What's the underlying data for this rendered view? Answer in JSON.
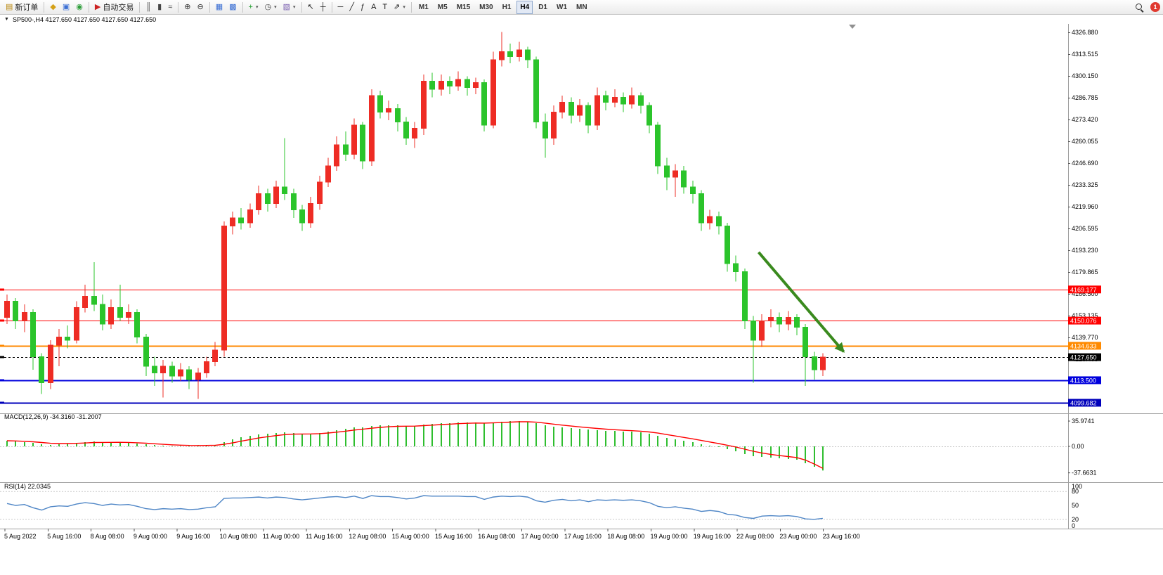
{
  "toolbar": {
    "dropdown_glyph": "▾",
    "notification_count": "1",
    "timeframes": [
      "M1",
      "M5",
      "M15",
      "M30",
      "H1",
      "H4",
      "D1",
      "W1",
      "MN"
    ],
    "active_timeframe": "H4",
    "items": [
      {
        "name": "new-order-button",
        "icon": "new-order-icon",
        "glyph": "▤",
        "color": "#b8860b",
        "label": "新订单"
      },
      {
        "type": "sep"
      },
      {
        "name": "market-watch-button",
        "icon": "market-watch-icon",
        "glyph": "◆",
        "color": "#d4a017"
      },
      {
        "name": "profiles-button",
        "icon": "profiles-icon",
        "glyph": "▣",
        "color": "#3b6fd4"
      },
      {
        "name": "news-button",
        "icon": "globe-icon",
        "glyph": "◉",
        "color": "#2e9e3a"
      },
      {
        "type": "sep"
      },
      {
        "name": "auto-trading-button",
        "icon": "auto-trading-icon",
        "glyph": "▶",
        "color": "#cc2222",
        "label": "自动交易"
      },
      {
        "type": "sep"
      },
      {
        "name": "bar-chart-button",
        "icon": "bar-chart-icon",
        "glyph": "║",
        "color": "#444"
      },
      {
        "name": "candlestick-chart-button",
        "icon": "candlestick-chart-icon",
        "glyph": "▮",
        "color": "#444"
      },
      {
        "name": "line-chart-button",
        "icon": "line-chart-icon",
        "glyph": "≈",
        "color": "#444"
      },
      {
        "type": "sep"
      },
      {
        "name": "zoom-in-button",
        "icon": "zoom-in-icon",
        "glyph": "⊕",
        "color": "#333"
      },
      {
        "name": "zoom-out-button",
        "icon": "zoom-out-icon",
        "glyph": "⊖",
        "color": "#333"
      },
      {
        "type": "sep"
      },
      {
        "name": "tile-windows-button",
        "icon": "tile-windows-icon",
        "glyph": "▦",
        "color": "#3b6fd4"
      },
      {
        "name": "cascade-windows-button",
        "icon": "cascade-windows-icon",
        "glyph": "▩",
        "color": "#3b6fd4"
      },
      {
        "type": "sep"
      },
      {
        "name": "new-chart-button",
        "icon": "plus-icon",
        "glyph": "+",
        "color": "#1f9e2c",
        "dropdown": true
      },
      {
        "name": "period-button",
        "icon": "clock-icon",
        "glyph": "◷",
        "color": "#444",
        "dropdown": true
      },
      {
        "name": "templates-button",
        "icon": "image-icon",
        "glyph": "▧",
        "color": "#7a5fb0",
        "dropdown": true
      },
      {
        "type": "sep"
      },
      {
        "name": "cursor-button",
        "icon": "cursor-icon",
        "glyph": "↖",
        "color": "#222"
      },
      {
        "name": "crosshair-button",
        "icon": "crosshair-icon",
        "glyph": "┼",
        "color": "#222"
      },
      {
        "type": "sep"
      },
      {
        "name": "horizontal-line-button",
        "icon": "horizontal-line-icon",
        "glyph": "─",
        "color": "#222"
      },
      {
        "name": "trendline-button",
        "icon": "trendline-icon",
        "glyph": "╱",
        "color": "#222"
      },
      {
        "name": "fibonacci-button",
        "icon": "fibonacci-icon",
        "glyph": "ƒ",
        "color": "#222"
      },
      {
        "name": "text-button",
        "icon": "text-icon",
        "glyph": "A",
        "color": "#222"
      },
      {
        "name": "label-button",
        "icon": "label-icon",
        "glyph": "T",
        "color": "#222"
      },
      {
        "name": "shapes-button",
        "icon": "arrow-shape-icon",
        "glyph": "⇗",
        "color": "#222",
        "dropdown": true
      },
      {
        "type": "sep"
      }
    ]
  },
  "chart": {
    "title": "SP500-,H4  4127.650 4127.650 4127.650 4127.650",
    "symbol": "SP500-",
    "period": "H4",
    "menu_glyph": "▼"
  },
  "chart_data": {
    "type": "candlestick",
    "symbol": "SP500-",
    "timeframe": "H4",
    "colors": {
      "up": "#ee2c24",
      "down": "#2bc42b",
      "macd_hist": "#2fbe2f",
      "macd_signal": "#ff0000",
      "rsi": "#4f86c6",
      "arrow": "#3a8a1e"
    },
    "price_axis": {
      "step": 13.365,
      "ticks": [
        "4326.880",
        "4313.515",
        "4300.150",
        "4286.785",
        "4273.420",
        "4260.055",
        "4246.690",
        "4233.325",
        "4219.960",
        "4206.595",
        "4193.230",
        "4179.865",
        "4166.500",
        "4153.135",
        "4139.770",
        "4126.405",
        "4113.040",
        "4099.675"
      ]
    },
    "hlines": [
      {
        "price": 4169.177,
        "label": "4169.177",
        "color": "#ff0000",
        "style": "solid",
        "width": 1
      },
      {
        "price": 4150.076,
        "label": "4150.076",
        "color": "#ff0000",
        "style": "solid",
        "width": 1
      },
      {
        "price": 4134.633,
        "label": "4134.633",
        "color": "#ff8a00",
        "style": "solid",
        "width": 2
      },
      {
        "price": 4127.65,
        "label": "4127.650",
        "color": "#000000",
        "style": "dash",
        "width": 1
      },
      {
        "price": 4113.5,
        "label": "4113.500",
        "color": "#0000dd",
        "style": "solid",
        "width": 2
      },
      {
        "price": 4099.682,
        "label": "4099.682",
        "color": "#0000bb",
        "style": "solid",
        "width": 2
      }
    ],
    "current_price": "4127.650",
    "arrow": {
      "from_index": 86.6,
      "from_price": 4192,
      "to_index": 96.4,
      "to_price": 4131,
      "color": "#3a8a1e"
    },
    "ohlc": [
      [
        4152,
        4166,
        4148,
        4162
      ],
      [
        4162,
        4164,
        4145,
        4150
      ],
      [
        4150,
        4160,
        4143,
        4155
      ],
      [
        4155,
        4157,
        4120,
        4128
      ],
      [
        4128,
        4130,
        4105,
        4112
      ],
      [
        4112,
        4138,
        4108,
        4135
      ],
      [
        4135,
        4145,
        4122,
        4140
      ],
      [
        4140,
        4147,
        4133,
        4138
      ],
      [
        4138,
        4162,
        4136,
        4158
      ],
      [
        4158,
        4172,
        4155,
        4165
      ],
      [
        4165,
        4186,
        4156,
        4160
      ],
      [
        4160,
        4166,
        4144,
        4148
      ],
      [
        4148,
        4163,
        4145,
        4158
      ],
      [
        4158,
        4172,
        4150,
        4152
      ],
      [
        4152,
        4160,
        4148,
        4155
      ],
      [
        4155,
        4157,
        4136,
        4140
      ],
      [
        4140,
        4142,
        4116,
        4122
      ],
      [
        4122,
        4128,
        4110,
        4118
      ],
      [
        4118,
        4126,
        4103,
        4122
      ],
      [
        4122,
        4125,
        4112,
        4116
      ],
      [
        4116,
        4124,
        4113,
        4120
      ],
      [
        4120,
        4122,
        4108,
        4114
      ],
      [
        4114,
        4121,
        4102,
        4118
      ],
      [
        4118,
        4128,
        4115,
        4125
      ],
      [
        4125,
        4137,
        4122,
        4132
      ],
      [
        4132,
        4211,
        4128,
        4208
      ],
      [
        4208,
        4217,
        4203,
        4213
      ],
      [
        4213,
        4219,
        4206,
        4210
      ],
      [
        4210,
        4222,
        4207,
        4218
      ],
      [
        4218,
        4233,
        4215,
        4228
      ],
      [
        4228,
        4231,
        4217,
        4222
      ],
      [
        4222,
        4236,
        4219,
        4232
      ],
      [
        4232,
        4262,
        4224,
        4228
      ],
      [
        4228,
        4231,
        4213,
        4218
      ],
      [
        4218,
        4221,
        4205,
        4210
      ],
      [
        4210,
        4226,
        4207,
        4222
      ],
      [
        4222,
        4239,
        4218,
        4235
      ],
      [
        4235,
        4250,
        4232,
        4245
      ],
      [
        4245,
        4263,
        4242,
        4258
      ],
      [
        4258,
        4266,
        4248,
        4252
      ],
      [
        4252,
        4274,
        4249,
        4270
      ],
      [
        4270,
        4272,
        4243,
        4248
      ],
      [
        4248,
        4292,
        4245,
        4288
      ],
      [
        4288,
        4291,
        4274,
        4278
      ],
      [
        4278,
        4285,
        4273,
        4280
      ],
      [
        4280,
        4283,
        4266,
        4272
      ],
      [
        4272,
        4275,
        4258,
        4262
      ],
      [
        4262,
        4272,
        4256,
        4268
      ],
      [
        4268,
        4301,
        4264,
        4297
      ],
      [
        4297,
        4302,
        4287,
        4292
      ],
      [
        4292,
        4301,
        4288,
        4297
      ],
      [
        4297,
        4300,
        4289,
        4294
      ],
      [
        4294,
        4303,
        4291,
        4298
      ],
      [
        4298,
        4300,
        4288,
        4293
      ],
      [
        4293,
        4299,
        4289,
        4296
      ],
      [
        4296,
        4298,
        4266,
        4270
      ],
      [
        4270,
        4315,
        4268,
        4310
      ],
      [
        4310,
        4327,
        4306,
        4315
      ],
      [
        4315,
        4320,
        4308,
        4312
      ],
      [
        4312,
        4321,
        4309,
        4316
      ],
      [
        4316,
        4318,
        4305,
        4310
      ],
      [
        4310,
        4312,
        4268,
        4272
      ],
      [
        4272,
        4277,
        4250,
        4262
      ],
      [
        4262,
        4282,
        4258,
        4278
      ],
      [
        4278,
        4288,
        4274,
        4284
      ],
      [
        4284,
        4287,
        4271,
        4276
      ],
      [
        4276,
        4286,
        4272,
        4282
      ],
      [
        4282,
        4284,
        4265,
        4270
      ],
      [
        4270,
        4293,
        4267,
        4288
      ],
      [
        4288,
        4291,
        4279,
        4284
      ],
      [
        4284,
        4292,
        4281,
        4287
      ],
      [
        4287,
        4290,
        4278,
        4283
      ],
      [
        4283,
        4293,
        4280,
        4288
      ],
      [
        4288,
        4290,
        4277,
        4282
      ],
      [
        4282,
        4284,
        4265,
        4270
      ],
      [
        4270,
        4272,
        4240,
        4245
      ],
      [
        4245,
        4250,
        4230,
        4238
      ],
      [
        4238,
        4246,
        4226,
        4242
      ],
      [
        4242,
        4245,
        4228,
        4232
      ],
      [
        4232,
        4236,
        4222,
        4228
      ],
      [
        4228,
        4230,
        4205,
        4210
      ],
      [
        4210,
        4218,
        4206,
        4214
      ],
      [
        4214,
        4217,
        4203,
        4208
      ],
      [
        4208,
        4210,
        4180,
        4185
      ],
      [
        4185,
        4190,
        4174,
        4180
      ],
      [
        4180,
        4182,
        4145,
        4150
      ],
      [
        4150,
        4153,
        4112,
        4138
      ],
      [
        4138,
        4154,
        4134,
        4150
      ],
      [
        4150,
        4157,
        4146,
        4152
      ],
      [
        4152,
        4155,
        4143,
        4148
      ],
      [
        4148,
        4156,
        4144,
        4152
      ],
      [
        4152,
        4154,
        4141,
        4146
      ],
      [
        4146,
        4148,
        4110,
        4128
      ],
      [
        4128,
        4131,
        4114,
        4120
      ],
      [
        4120,
        4130,
        4116,
        4127.65
      ]
    ],
    "macd": {
      "label_text": "MACD(12,26,9) -34.3160 -31.2007",
      "axis_ticks": [
        "35.9741",
        "0.00",
        "-37.6631"
      ],
      "hist": [
        8,
        7,
        6,
        5,
        3,
        2,
        3,
        4,
        5,
        6,
        7,
        6,
        6,
        6,
        5,
        4,
        3,
        2,
        1,
        0.5,
        0.5,
        0.5,
        1,
        1.5,
        2,
        6,
        10,
        13,
        15,
        17,
        18,
        19,
        20,
        19,
        18,
        18,
        19,
        21,
        23,
        25,
        27,
        27,
        29,
        30,
        30,
        30,
        29,
        29,
        31,
        32,
        33,
        33,
        34,
        34,
        34,
        33,
        34,
        35,
        36,
        36,
        35,
        33,
        30,
        28,
        27,
        26,
        25,
        24,
        23,
        22,
        22,
        21,
        21,
        20,
        18,
        15,
        12,
        10,
        8,
        6,
        3,
        1,
        -1,
        -4,
        -7,
        -11,
        -14,
        -15,
        -16,
        -17,
        -18,
        -19,
        -24,
        -29,
        -34.3
      ],
      "signal": [
        8,
        7.7,
        7.2,
        6.5,
        5.5,
        4.4,
        4,
        4,
        4.3,
        4.8,
        5.5,
        5.6,
        5.7,
        5.8,
        5.6,
        5.1,
        4.5,
        3.7,
        2.9,
        2.2,
        1.7,
        1.3,
        1.2,
        1.3,
        1.5,
        2.9,
        5,
        7.4,
        9.7,
        11.9,
        13.7,
        15.3,
        16.7,
        17.4,
        17.6,
        17.7,
        18.1,
        19,
        20.2,
        21.6,
        23.2,
        24.4,
        25.8,
        27,
        27.9,
        28.5,
        28.7,
        28.8,
        29.5,
        30.2,
        31,
        31.6,
        32.3,
        32.8,
        33.2,
        33.1,
        33.4,
        33.9,
        34.5,
        35,
        35,
        34.4,
        33.1,
        31.6,
        30.2,
        28.9,
        27.7,
        26.6,
        25.5,
        24.5,
        23.7,
        22.9,
        22.3,
        21.6,
        20.5,
        18.9,
        16.8,
        14.8,
        12.7,
        10.7,
        8.4,
        6.2,
        4,
        1.6,
        -1,
        -4,
        -7,
        -9.4,
        -11.4,
        -13.1,
        -14.5,
        -15.9,
        -19.5,
        -25,
        -31.2
      ]
    },
    "rsi": {
      "label_text": "RSI(14) 22.0345",
      "axis_ticks": [
        "100",
        "80",
        "50",
        "20",
        "0"
      ],
      "levels": [
        80,
        20
      ],
      "values": [
        54,
        50,
        52,
        45,
        40,
        47,
        49,
        48,
        53,
        56,
        54,
        50,
        53,
        51,
        52,
        48,
        43,
        41,
        43,
        42,
        43,
        41,
        42,
        45,
        47,
        65,
        66,
        66,
        67,
        68,
        66,
        68,
        67,
        64,
        62,
        64,
        66,
        68,
        69,
        67,
        70,
        65,
        71,
        69,
        69,
        67,
        64,
        66,
        71,
        70,
        70,
        70,
        70,
        69,
        69,
        63,
        68,
        70,
        69,
        70,
        68,
        60,
        57,
        61,
        63,
        60,
        62,
        58,
        62,
        61,
        62,
        61,
        62,
        60,
        56,
        48,
        45,
        47,
        44,
        42,
        37,
        39,
        37,
        31,
        29,
        24,
        22,
        27,
        28,
        27,
        28,
        26,
        21,
        20,
        22
      ]
    },
    "time_axis": [
      "5 Aug 2022",
      "5 Aug 16:00",
      "8 Aug 08:00",
      "9 Aug 00:00",
      "9 Aug 16:00",
      "10 Aug 08:00",
      "11 Aug 00:00",
      "11 Aug 16:00",
      "12 Aug 08:00",
      "15 Aug 00:00",
      "15 Aug 16:00",
      "16 Aug 08:00",
      "17 Aug 00:00",
      "17 Aug 16:00",
      "18 Aug 08:00",
      "19 Aug 00:00",
      "19 Aug 16:00",
      "22 Aug 08:00",
      "23 Aug 00:00",
      "23 Aug 16:00"
    ]
  }
}
